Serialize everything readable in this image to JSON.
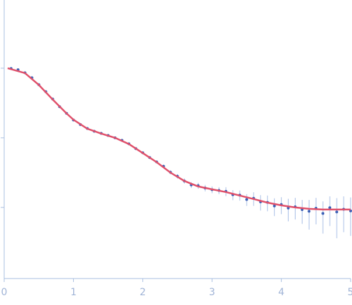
{
  "chart_data": {
    "type": "scatter",
    "x": [
      0.1,
      0.2,
      0.3,
      0.4,
      0.5,
      0.6,
      0.7,
      0.8,
      0.9,
      1.0,
      1.1,
      1.2,
      1.3,
      1.4,
      1.5,
      1.6,
      1.7,
      1.8,
      1.9,
      2.0,
      2.1,
      2.2,
      2.3,
      2.4,
      2.5,
      2.6,
      2.7,
      2.8,
      2.9,
      3.0,
      3.1,
      3.2,
      3.3,
      3.4,
      3.5,
      3.6,
      3.7,
      3.8,
      3.9,
      4.0,
      4.1,
      4.2,
      4.3,
      4.4,
      4.5,
      4.6,
      4.7,
      4.8,
      4.9,
      5.0
    ],
    "series": [
      {
        "color": "#3b5fb5",
        "error_color": "#a9bfe6",
        "values": [
          0.99,
          0.95,
          0.86,
          0.73,
          0.58,
          0.46,
          0.36,
          0.28,
          0.225,
          0.18,
          0.155,
          0.136,
          0.124,
          0.116,
          0.108,
          0.1,
          0.092,
          0.082,
          0.07,
          0.061,
          0.052,
          0.045,
          0.039,
          0.032,
          0.028,
          0.024,
          0.021,
          0.0205,
          0.019,
          0.018,
          0.0175,
          0.017,
          0.0152,
          0.015,
          0.013,
          0.0135,
          0.012,
          0.0118,
          0.0105,
          0.011,
          0.0098,
          0.0102,
          0.0093,
          0.0088,
          0.0097,
          0.0082,
          0.0099,
          0.0086,
          0.0094,
          0.0089
        ],
        "errors": [
          0.005,
          0.005,
          0.005,
          0.004,
          0.004,
          0.004,
          0.003,
          0.003,
          0.003,
          0.003,
          0.003,
          0.003,
          0.003,
          0.003,
          0.003,
          0.003,
          0.003,
          0.003,
          0.002,
          0.002,
          0.002,
          0.002,
          0.002,
          0.002,
          0.002,
          0.002,
          0.002,
          0.002,
          0.002,
          0.002,
          0.002,
          0.0025,
          0.0025,
          0.0025,
          0.0025,
          0.003,
          0.003,
          0.003,
          0.003,
          0.003,
          0.0035,
          0.0035,
          0.0035,
          0.004,
          0.004,
          0.004,
          0.0045,
          0.005,
          0.005,
          0.005
        ]
      },
      {
        "type": "line",
        "color": "#e0506a",
        "x": [
          0.05,
          0.3,
          0.5,
          0.7,
          0.9,
          1.0,
          1.2,
          1.4,
          1.6,
          1.8,
          2.0,
          2.2,
          2.4,
          2.6,
          2.8,
          3.0,
          3.2,
          3.4,
          3.6,
          3.8,
          4.0,
          4.2,
          4.4,
          4.6,
          4.8,
          5.0
        ],
        "values": [
          1.0,
          0.851,
          0.575,
          0.355,
          0.224,
          0.182,
          0.135,
          0.115,
          0.1,
          0.0813,
          0.0603,
          0.0447,
          0.0316,
          0.024,
          0.02,
          0.0182,
          0.0166,
          0.0148,
          0.0132,
          0.0117,
          0.0107,
          0.01,
          0.00955,
          0.00933,
          0.00933,
          0.00933
        ]
      }
    ],
    "xlim": [
      0,
      5
    ],
    "xticks": [
      0,
      1,
      2,
      3,
      4,
      5
    ],
    "ylim": [
      0.00095,
      9.55
    ],
    "yticks": [
      0.01,
      0.1,
      1
    ],
    "ytick_labels": false,
    "log_y": true,
    "axis_color": "#a9bfe0",
    "label_color": "#9fb3d6"
  }
}
